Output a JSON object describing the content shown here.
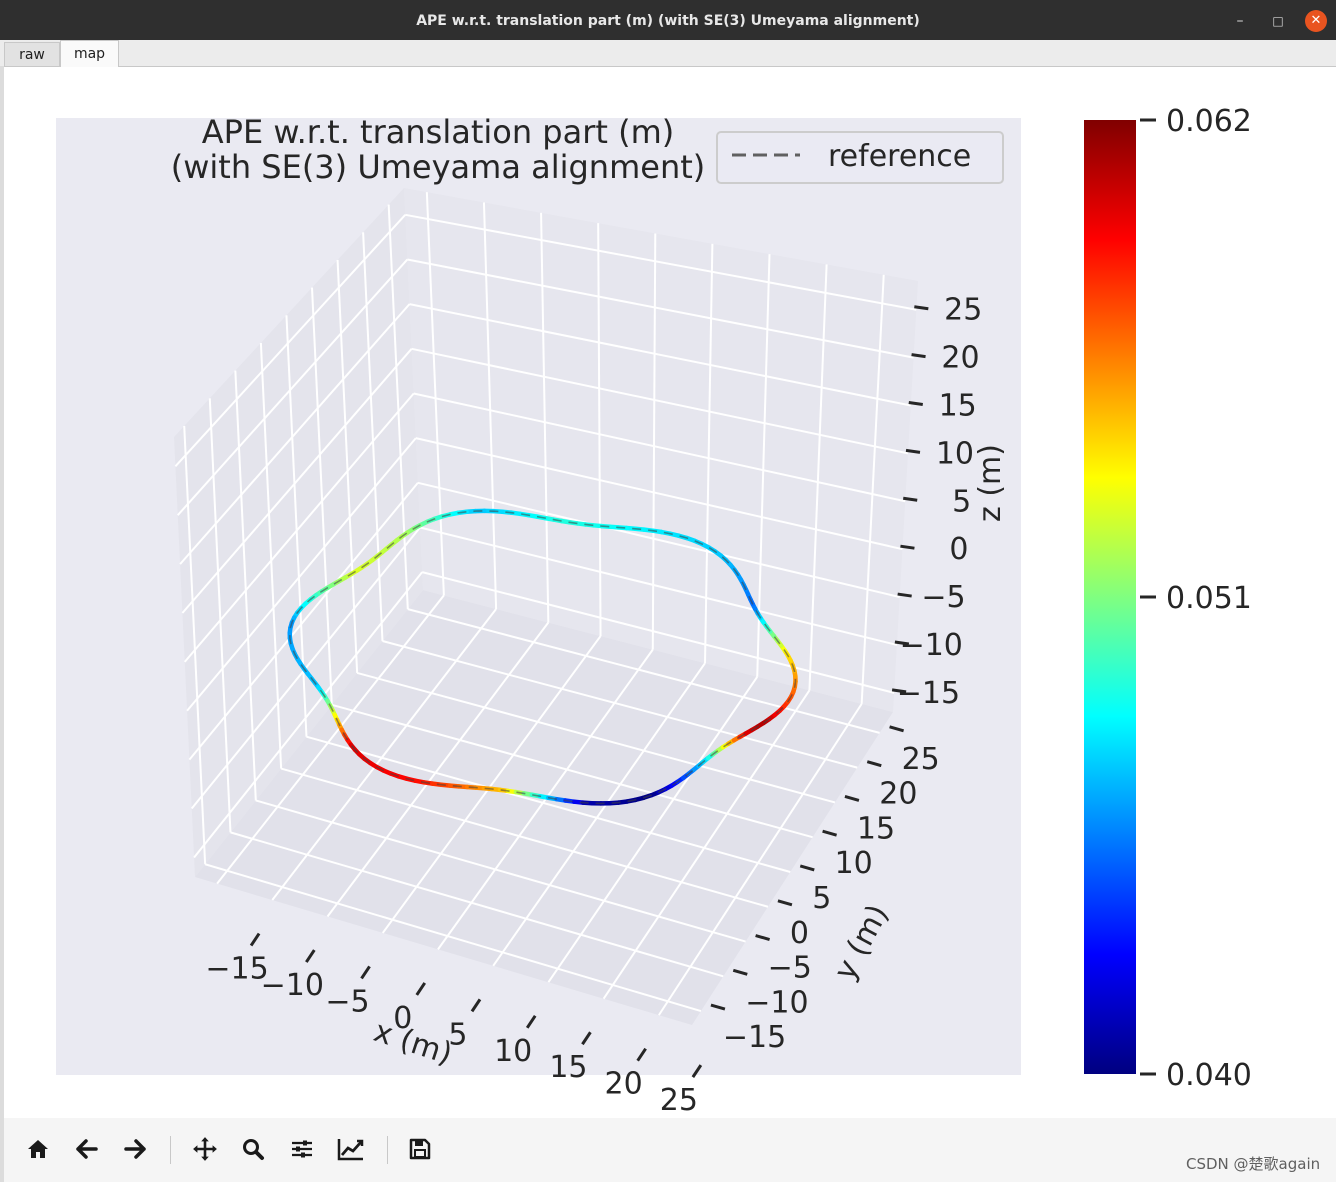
{
  "window": {
    "title": "APE w.r.t. translation part (m) (with SE(3) Umeyama alignment)",
    "minimize_glyph": "–",
    "maximize_glyph": "□",
    "close_glyph": "✕",
    "close_color": "#e95420"
  },
  "tabs": [
    {
      "label": "raw",
      "active": false
    },
    {
      "label": "map",
      "active": true
    }
  ],
  "chart_data": {
    "type": "line3d",
    "title_line1": "APE w.r.t. translation part (m)",
    "title_line2": "(with SE(3) Umeyama alignment)",
    "legend": {
      "entries": [
        "reference"
      ],
      "placement": "top-right",
      "style": "dashed"
    },
    "xlabel": "x (m)",
    "ylabel": "y (m)",
    "zlabel": "z (m)",
    "x_ticks": [
      "−15",
      "−10",
      "−5",
      "0",
      "5",
      "10",
      "15",
      "20",
      "25"
    ],
    "y_ticks": [
      "−15",
      "−10",
      "−5",
      "0",
      "5",
      "10",
      "15",
      "20",
      "25"
    ],
    "z_ticks": [
      "−15",
      "−10",
      "−5",
      "0",
      "5",
      "10",
      "15",
      "20",
      "25"
    ],
    "xlim": [
      -17,
      28
    ],
    "ylim": [
      -17,
      28
    ],
    "zlim": [
      -17,
      28
    ],
    "grid": true,
    "colormap": "jet",
    "colorbar": {
      "min": 0.04,
      "max": 0.062,
      "ticks": [
        "0.040",
        "0.051",
        "0.062"
      ]
    },
    "trajectory": {
      "shape": "wavy circle",
      "center_x": 5,
      "center_y": 5,
      "radius_m": 20,
      "z_m": 0,
      "ripples": 6,
      "ripple_amplitude_m": 1,
      "error_control_points": [
        {
          "angle_deg": 0,
          "value": 0.061
        },
        {
          "angle_deg": 10,
          "value": 0.058
        },
        {
          "angle_deg": 30,
          "value": 0.054
        },
        {
          "angle_deg": 50,
          "value": 0.045
        },
        {
          "angle_deg": 70,
          "value": 0.047
        },
        {
          "angle_deg": 90,
          "value": 0.048
        },
        {
          "angle_deg": 110,
          "value": 0.049
        },
        {
          "angle_deg": 130,
          "value": 0.047
        },
        {
          "angle_deg": 150,
          "value": 0.052
        },
        {
          "angle_deg": 170,
          "value": 0.053
        },
        {
          "angle_deg": 195,
          "value": 0.046
        },
        {
          "angle_deg": 220,
          "value": 0.047
        },
        {
          "angle_deg": 245,
          "value": 0.06
        },
        {
          "angle_deg": 265,
          "value": 0.059
        },
        {
          "angle_deg": 285,
          "value": 0.055
        },
        {
          "angle_deg": 305,
          "value": 0.041
        },
        {
          "angle_deg": 320,
          "value": 0.04
        },
        {
          "angle_deg": 340,
          "value": 0.048
        },
        {
          "angle_deg": 355,
          "value": 0.06
        },
        {
          "angle_deg": 360,
          "value": 0.061
        }
      ]
    }
  },
  "toolbar": {
    "buttons": [
      {
        "name": "home-icon"
      },
      {
        "name": "back-arrow-icon"
      },
      {
        "name": "forward-arrow-icon"
      },
      {
        "name": "pan-icon"
      },
      {
        "name": "zoom-icon"
      },
      {
        "name": "configure-subplots-icon"
      },
      {
        "name": "edit-axis-icon"
      },
      {
        "name": "save-icon"
      }
    ]
  },
  "watermark": "CSDN @楚歌again",
  "colors": {
    "plot_background": "#eaeaf2",
    "grid": "#ffffff",
    "text": "#262626"
  }
}
